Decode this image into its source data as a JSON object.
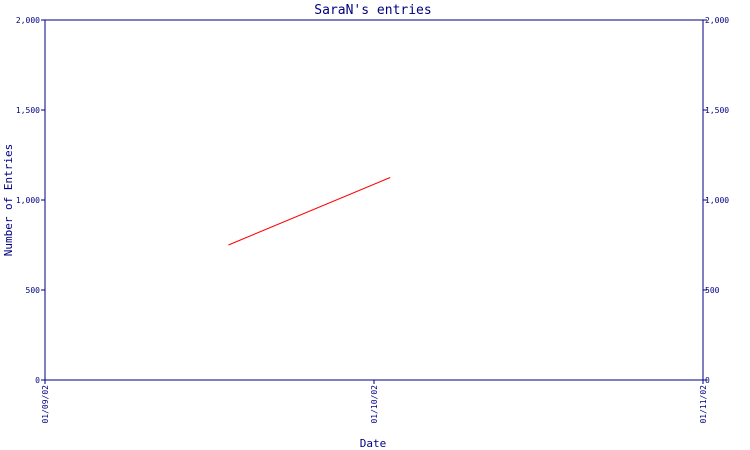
{
  "chart_data": {
    "type": "line",
    "title": "SaraN's entries",
    "xlabel": "Date",
    "ylabel": "Number of Entries",
    "x_ticks": [
      "01/09/02",
      "01/10/02",
      "01/11/02"
    ],
    "y_ticks": [
      "0",
      "500",
      "1,000",
      "1,500",
      "2,000"
    ],
    "ylim": [
      0,
      2000
    ],
    "xlim": [
      "2002-09-01",
      "2002-11-01"
    ],
    "grid": false,
    "series": [
      {
        "x": [
          "2002-09-18",
          "2002-10-03"
        ],
        "y": [
          750,
          1125
        ]
      }
    ],
    "colors": {
      "axis": "#000080",
      "line": "#ff0000",
      "background": "#ffffff"
    }
  }
}
